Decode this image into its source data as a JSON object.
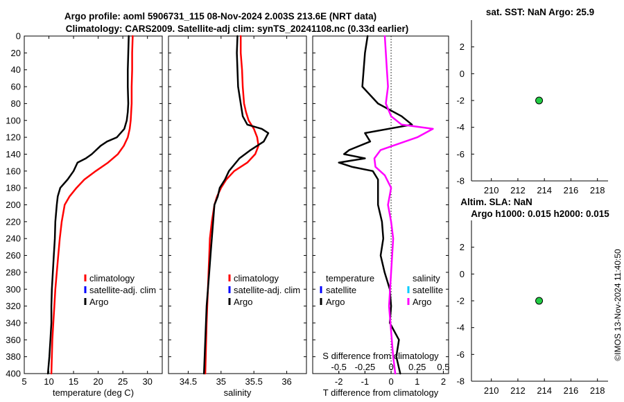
{
  "header": {
    "title_line1": "Argo profile: aoml 5906731_115 08-Nov-2024 2.003S 213.6E (NRT data)",
    "title_line2": "Climatology: CARS2009. Satellite-adj clim: synTS_20241108.nc (0.33d earlier)",
    "sst_title": "sat. SST: NaN Argo: 25.9",
    "sla_title1": "Altim. SLA: NaN",
    "sla_title2": "Argo h1000: 0.015 h2000: 0.015",
    "timestamp": "©IMOS 13-Nov-2024 11:40:50"
  },
  "colors": {
    "climatology": "#ff0000",
    "satellite_adj": "#0000ff",
    "argo": "#000000",
    "salinity_diff": "#ff00ff",
    "salinity_satellite": "#00ccff",
    "marker_fill": "#22cc44"
  },
  "chart_data": [
    {
      "name": "temperature-profile",
      "type": "line",
      "xlabel": "temperature (deg C)",
      "ylabel": "",
      "xlim": [
        5,
        33
      ],
      "ylim": [
        0,
        400
      ],
      "y_inverted": true,
      "x_ticks": [
        "5",
        "10",
        "15",
        "20",
        "25",
        "30"
      ],
      "x_tick_values": [
        5,
        10,
        15,
        20,
        25,
        30
      ],
      "y_ticks": [
        "0",
        "20",
        "40",
        "60",
        "80",
        "100",
        "120",
        "140",
        "160",
        "180",
        "200",
        "220",
        "240",
        "260",
        "280",
        "300",
        "320",
        "340",
        "360",
        "380",
        "400"
      ],
      "y_tick_values": [
        0,
        20,
        40,
        60,
        80,
        100,
        120,
        140,
        160,
        180,
        200,
        220,
        240,
        260,
        280,
        300,
        320,
        340,
        360,
        380,
        400
      ],
      "legend": [
        "climatology",
        "satellite-adj. clim",
        "Argo"
      ],
      "series": [
        {
          "name": "climatology",
          "color": "#ff0000",
          "x": [
            27.0,
            26.9,
            26.9,
            26.8,
            26.8,
            26.7,
            26.6,
            26.4,
            26.0,
            25.2,
            24.0,
            22.0,
            19.5,
            17.2,
            15.6,
            14.2,
            13.2,
            12.6,
            12.2,
            11.9,
            11.6,
            11.3,
            11.1,
            10.9,
            10.7,
            10.5
          ],
          "y": [
            0,
            20,
            40,
            60,
            80,
            90,
            100,
            110,
            120,
            130,
            140,
            150,
            160,
            170,
            180,
            190,
            200,
            220,
            240,
            260,
            280,
            300,
            320,
            340,
            360,
            400
          ]
        },
        {
          "name": "Argo",
          "color": "#000000",
          "x": [
            26.2,
            26.1,
            26.0,
            26.0,
            26.1,
            26.0,
            25.8,
            25.3,
            23.8,
            21.8,
            20.5,
            18.7,
            17.5,
            15.8,
            15.0,
            13.8,
            12.3,
            11.8,
            11.6,
            11.3,
            11.2,
            11.0,
            10.8,
            10.6,
            10.5,
            10.5,
            10.3,
            10.1,
            9.8
          ],
          "y": [
            0,
            20,
            40,
            60,
            80,
            90,
            100,
            110,
            120,
            125,
            130,
            140,
            145,
            150,
            160,
            170,
            180,
            190,
            200,
            220,
            240,
            260,
            280,
            300,
            320,
            340,
            360,
            380,
            400
          ]
        }
      ]
    },
    {
      "name": "salinity-profile",
      "type": "line",
      "xlabel": "salinity",
      "ylabel": "",
      "xlim": [
        34.2,
        36.3
      ],
      "ylim": [
        0,
        400
      ],
      "y_inverted": true,
      "x_ticks": [
        "34.5",
        "35",
        "35.5",
        "36"
      ],
      "x_tick_values": [
        34.5,
        35,
        35.5,
        36
      ],
      "legend": [
        "climatology",
        "satellite-adj. clim",
        "Argo"
      ],
      "series": [
        {
          "name": "climatology",
          "color": "#ff0000",
          "x": [
            35.3,
            35.3,
            35.32,
            35.33,
            35.35,
            35.38,
            35.42,
            35.5,
            35.55,
            35.57,
            35.52,
            35.4,
            35.2,
            35.08,
            35.0,
            34.94,
            34.9,
            34.86,
            34.83,
            34.82,
            34.81,
            34.8,
            34.79,
            34.78,
            34.76
          ],
          "y": [
            0,
            20,
            40,
            60,
            80,
            90,
            100,
            110,
            120,
            130,
            140,
            150,
            160,
            170,
            180,
            190,
            200,
            220,
            240,
            260,
            280,
            300,
            320,
            340,
            400
          ]
        },
        {
          "name": "Argo",
          "color": "#000000",
          "x": [
            35.25,
            35.24,
            35.25,
            35.26,
            35.3,
            35.33,
            35.4,
            35.62,
            35.72,
            35.65,
            35.45,
            35.28,
            35.12,
            35.06,
            34.98,
            34.95,
            34.9,
            34.88,
            34.86,
            34.84,
            34.82,
            34.8,
            34.78,
            34.76,
            34.74
          ],
          "y": [
            0,
            20,
            40,
            60,
            80,
            95,
            105,
            110,
            115,
            125,
            135,
            145,
            160,
            170,
            180,
            190,
            200,
            220,
            240,
            260,
            280,
            300,
            320,
            360,
            400
          ]
        }
      ]
    },
    {
      "name": "difference-profile",
      "type": "line",
      "xlabel": "T difference from climatology",
      "xlabel_top": "S difference from climatology",
      "xlim": [
        -3,
        2.2
      ],
      "ylim": [
        0,
        400
      ],
      "y_inverted": true,
      "x_ticks": [
        "-2",
        "-1",
        "0",
        "1",
        "2"
      ],
      "x_tick_values": [
        -2,
        -1,
        0,
        1,
        2
      ],
      "s_ticks": [
        "-0.5",
        "-0.25",
        "0",
        "0.25",
        "0.5"
      ],
      "s_tick_values": [
        -0.5,
        -0.25,
        0,
        0.25,
        0.5
      ],
      "legend_left_header": "temperature",
      "legend_right_header": "salinity",
      "legend_left": [
        "satellite",
        "Argo"
      ],
      "legend_right": [
        "satellite",
        "Argo"
      ],
      "series": [
        {
          "name": "T difference (Argo)",
          "color": "#000000",
          "x": [
            -0.9,
            -1.0,
            -1.05,
            -1.1,
            -0.5,
            0.4,
            0.8,
            -1.0,
            -0.8,
            -1.6,
            -1.8,
            -1.0,
            -2.0,
            -1.5,
            -0.7,
            -0.5,
            -0.5,
            -0.35,
            -0.3,
            -0.4,
            -0.25,
            -0.05,
            0.0,
            -0.05,
            0.3,
            0.2,
            0.35
          ],
          "y": [
            0,
            20,
            40,
            60,
            80,
            95,
            105,
            115,
            125,
            135,
            140,
            145,
            150,
            155,
            160,
            170,
            200,
            220,
            240,
            260,
            280,
            300,
            320,
            340,
            360,
            380,
            400
          ]
        },
        {
          "name": "S difference (Argo)",
          "color": "#ff00ff",
          "x": [
            -0.06,
            -0.05,
            -0.04,
            -0.03,
            -0.05,
            0.0,
            0.1,
            0.4,
            0.25,
            -0.1,
            -0.16,
            -0.15,
            -0.06,
            0.0,
            -0.03,
            0.0,
            0.02,
            0.0,
            -0.02,
            0.0,
            0.02,
            0.04
          ],
          "y": [
            0,
            20,
            40,
            60,
            80,
            95,
            105,
            110,
            120,
            135,
            145,
            155,
            165,
            180,
            200,
            220,
            240,
            280,
            320,
            350,
            380,
            400
          ]
        }
      ]
    },
    {
      "name": "sst-scatter",
      "type": "scatter",
      "title": "sat. SST: NaN Argo: 25.9",
      "xlim": [
        208.5,
        218.8
      ],
      "ylim": [
        -8,
        4
      ],
      "x_ticks": [
        "210",
        "212",
        "214",
        "216",
        "218"
      ],
      "x_tick_values": [
        210,
        212,
        214,
        216,
        218
      ],
      "y_ticks": [
        "2",
        "0",
        "-2",
        "-4",
        "-6",
        "-8"
      ],
      "y_tick_values": [
        2,
        0,
        -2,
        -4,
        -6,
        -8
      ],
      "points": [
        {
          "x": 213.6,
          "y": -2.0
        }
      ]
    },
    {
      "name": "sla-scatter",
      "type": "scatter",
      "title": "Altim. SLA: NaN",
      "xlim": [
        208.5,
        218.8
      ],
      "ylim": [
        -8,
        4
      ],
      "x_ticks": [
        "210",
        "212",
        "214",
        "216",
        "218"
      ],
      "x_tick_values": [
        210,
        212,
        214,
        216,
        218
      ],
      "y_ticks": [
        "2",
        "0",
        "-2",
        "-4",
        "-6",
        "-8"
      ],
      "y_tick_values": [
        2,
        0,
        -2,
        -4,
        -6,
        -8
      ],
      "points": [
        {
          "x": 213.6,
          "y": -2.0
        }
      ]
    }
  ]
}
